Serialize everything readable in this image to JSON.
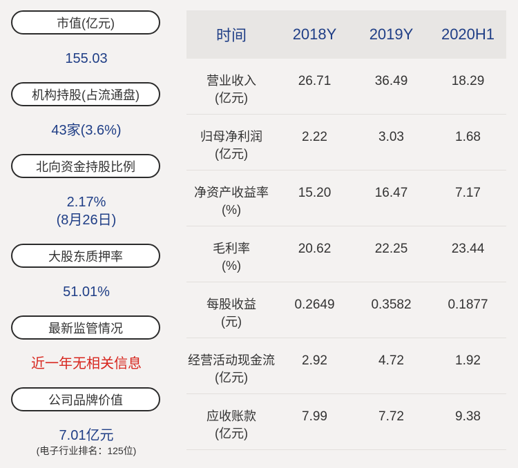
{
  "left_panel": {
    "blocks": [
      {
        "label": "市值(亿元)",
        "value": "155.03",
        "value2": "",
        "sub": ""
      },
      {
        "label": "机构持股(占流通盘)",
        "value": "43家(3.6%)",
        "value2": "",
        "sub": ""
      },
      {
        "label": "北向资金持股比例",
        "value": "2.17%",
        "value2": "(8月26日)",
        "sub": ""
      },
      {
        "label": "大股东质押率",
        "value": "51.01%",
        "value2": "",
        "sub": ""
      },
      {
        "label": "最新监管情况",
        "value": "近一年无相关信息",
        "value2": "",
        "sub": ""
      },
      {
        "label": "公司品牌价值",
        "value": "7.01亿元",
        "value2": "",
        "sub": "(电子行业排名：125位)"
      }
    ]
  },
  "table": {
    "headers": [
      "时间",
      "2018Y",
      "2019Y",
      "2020H1"
    ],
    "rows": [
      {
        "name": "营业收入",
        "unit": "(亿元)",
        "values": [
          "26.71",
          "36.49",
          "18.29"
        ]
      },
      {
        "name": "归母净利润",
        "unit": "(亿元)",
        "values": [
          "2.22",
          "3.03",
          "1.68"
        ]
      },
      {
        "name": "净资产收益率",
        "unit": "(%)",
        "values": [
          "15.20",
          "16.47",
          "7.17"
        ]
      },
      {
        "name": "毛利率",
        "unit": "(%)",
        "values": [
          "20.62",
          "22.25",
          "23.44"
        ]
      },
      {
        "name": "每股收益",
        "unit": "(元)",
        "values": [
          "0.2649",
          "0.3582",
          "0.1877"
        ]
      },
      {
        "name": "经营活动现金流",
        "unit": "(亿元)",
        "values": [
          "2.92",
          "4.72",
          "1.92"
        ]
      },
      {
        "name": "应收账款",
        "unit": "(亿元)",
        "values": [
          "7.99",
          "7.72",
          "9.38"
        ]
      }
    ]
  },
  "colors": {
    "accent_blue": "#1f3e86",
    "alert_red": "#d7261e",
    "background": "#f4f2f1",
    "header_bg": "#e8e6e4"
  }
}
